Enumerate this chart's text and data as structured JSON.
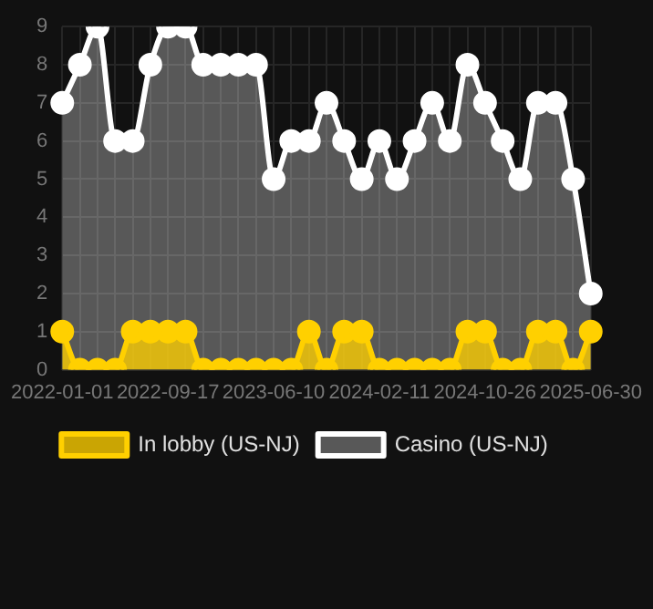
{
  "chart_data": {
    "type": "area",
    "categories": [
      "2022-01-01",
      null,
      null,
      null,
      null,
      null,
      "2022-09-17",
      null,
      null,
      null,
      null,
      null,
      "2023-06-10",
      null,
      null,
      null,
      null,
      null,
      "2024-02-11",
      null,
      null,
      null,
      null,
      null,
      "2024-10-26",
      null,
      null,
      null,
      null,
      null,
      "2025-06-30"
    ],
    "series": [
      {
        "name": "In lobby (US-NJ)",
        "color": "#ffd000",
        "values": [
          1,
          0,
          0,
          0,
          1,
          1,
          1,
          1,
          0,
          0,
          0,
          0,
          0,
          0,
          1,
          0,
          1,
          1,
          0,
          0,
          0,
          0,
          0,
          1,
          1,
          0,
          0,
          1,
          1,
          0,
          1
        ]
      },
      {
        "name": "Casino (US-NJ)",
        "color": "#ffffff",
        "values": [
          7,
          8,
          9,
          6,
          6,
          8,
          9,
          9,
          8,
          8,
          8,
          8,
          5,
          6,
          6,
          7,
          6,
          5,
          6,
          5,
          6,
          7,
          6,
          8,
          7,
          6,
          5,
          7,
          7,
          5,
          2
        ]
      }
    ],
    "ylim": [
      0,
      9
    ],
    "yticks": [
      0,
      1,
      2,
      3,
      4,
      5,
      6,
      7,
      8,
      9
    ],
    "grid": true,
    "legend": "bottom",
    "marker": "circle"
  }
}
